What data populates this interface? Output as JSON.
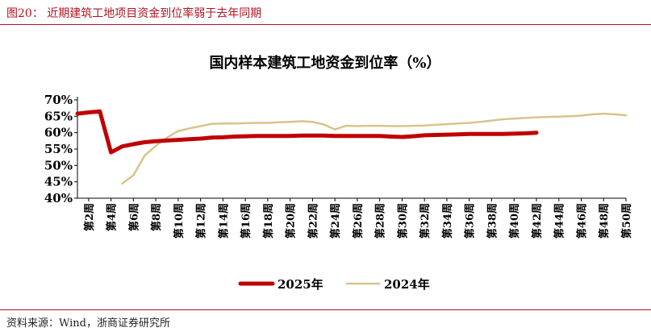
{
  "figure": {
    "caption": "图20：  近期建筑工地项目资金到位率弱于去年同期",
    "source": "资料来源：Wind，浙商证券研究所"
  },
  "colors": {
    "accent": "#b3121f",
    "series_2025": "#c00000",
    "series_2024": "#d9c38a"
  },
  "chart_data": {
    "type": "line",
    "title": "国内样本建筑工地资金到位率（%）",
    "xlabel": "",
    "ylabel": "",
    "ylim": [
      40,
      70
    ],
    "yticks": [
      "70%",
      "65%",
      "60%",
      "55%",
      "50%",
      "45%",
      "40%"
    ],
    "ytick_values": [
      70,
      65,
      60,
      55,
      50,
      45,
      40
    ],
    "x_range": [
      1,
      50
    ],
    "xtick_labels": [
      "第2周",
      "第4周",
      "第6周",
      "第8周",
      "第10周",
      "第12周",
      "第14周",
      "第16周",
      "第18周",
      "第20周",
      "第22周",
      "第24周",
      "第26周",
      "第28周",
      "第30周",
      "第32周",
      "第34周",
      "第36周",
      "第38周",
      "第40周",
      "第42周",
      "第44周",
      "第46周",
      "第48周",
      "第50周"
    ],
    "xtick_weeks": [
      2,
      4,
      6,
      8,
      10,
      12,
      14,
      16,
      18,
      20,
      22,
      24,
      26,
      28,
      30,
      32,
      34,
      36,
      38,
      40,
      42,
      44,
      46,
      48,
      50
    ],
    "grid": false,
    "legend_position": "bottom",
    "series": [
      {
        "name": "2025年",
        "x": [
          1,
          2,
          3,
          4,
          5,
          6,
          7,
          8,
          9,
          10,
          11,
          12,
          13,
          14,
          15,
          16,
          17,
          18,
          19,
          20,
          21,
          22,
          23,
          24,
          25,
          26,
          27,
          28,
          29,
          30,
          31,
          32,
          33,
          34,
          35,
          36,
          36,
          37,
          38,
          39,
          40,
          41,
          42
        ],
        "y": [
          65.8,
          66.2,
          66.5,
          54.0,
          55.8,
          56.5,
          57.1,
          57.4,
          57.6,
          57.8,
          58.0,
          58.2,
          58.5,
          58.6,
          58.8,
          58.9,
          59.0,
          59.0,
          59.0,
          59.0,
          59.1,
          59.1,
          59.1,
          59.0,
          59.0,
          59.0,
          59.0,
          59.0,
          58.8,
          58.7,
          58.9,
          59.2,
          59.3,
          59.4,
          59.5,
          59.6,
          59.6,
          59.6,
          59.6,
          59.6,
          59.7,
          59.8,
          60.0
        ]
      },
      {
        "name": "2024年",
        "x": [
          5,
          6,
          7,
          8,
          9,
          10,
          11,
          12,
          13,
          14,
          15,
          16,
          17,
          18,
          19,
          20,
          21,
          22,
          23,
          24,
          25,
          26,
          27,
          28,
          29,
          30,
          31,
          32,
          33,
          34,
          35,
          36,
          37,
          38,
          39,
          40,
          41,
          42,
          43,
          44,
          45,
          46,
          47,
          48,
          49,
          50
        ],
        "y": [
          44.5,
          47.0,
          53.0,
          56.0,
          58.5,
          60.5,
          61.3,
          62.0,
          62.7,
          62.8,
          62.8,
          62.9,
          63.0,
          63.0,
          63.2,
          63.3,
          63.5,
          63.3,
          62.5,
          61.0,
          62.1,
          62.0,
          62.1,
          62.1,
          62.0,
          62.0,
          62.1,
          62.2,
          62.4,
          62.6,
          62.8,
          63.0,
          63.3,
          63.7,
          64.1,
          64.3,
          64.5,
          64.7,
          64.8,
          64.9,
          65.0,
          65.2,
          65.6,
          65.8,
          65.6,
          65.3
        ]
      }
    ]
  }
}
